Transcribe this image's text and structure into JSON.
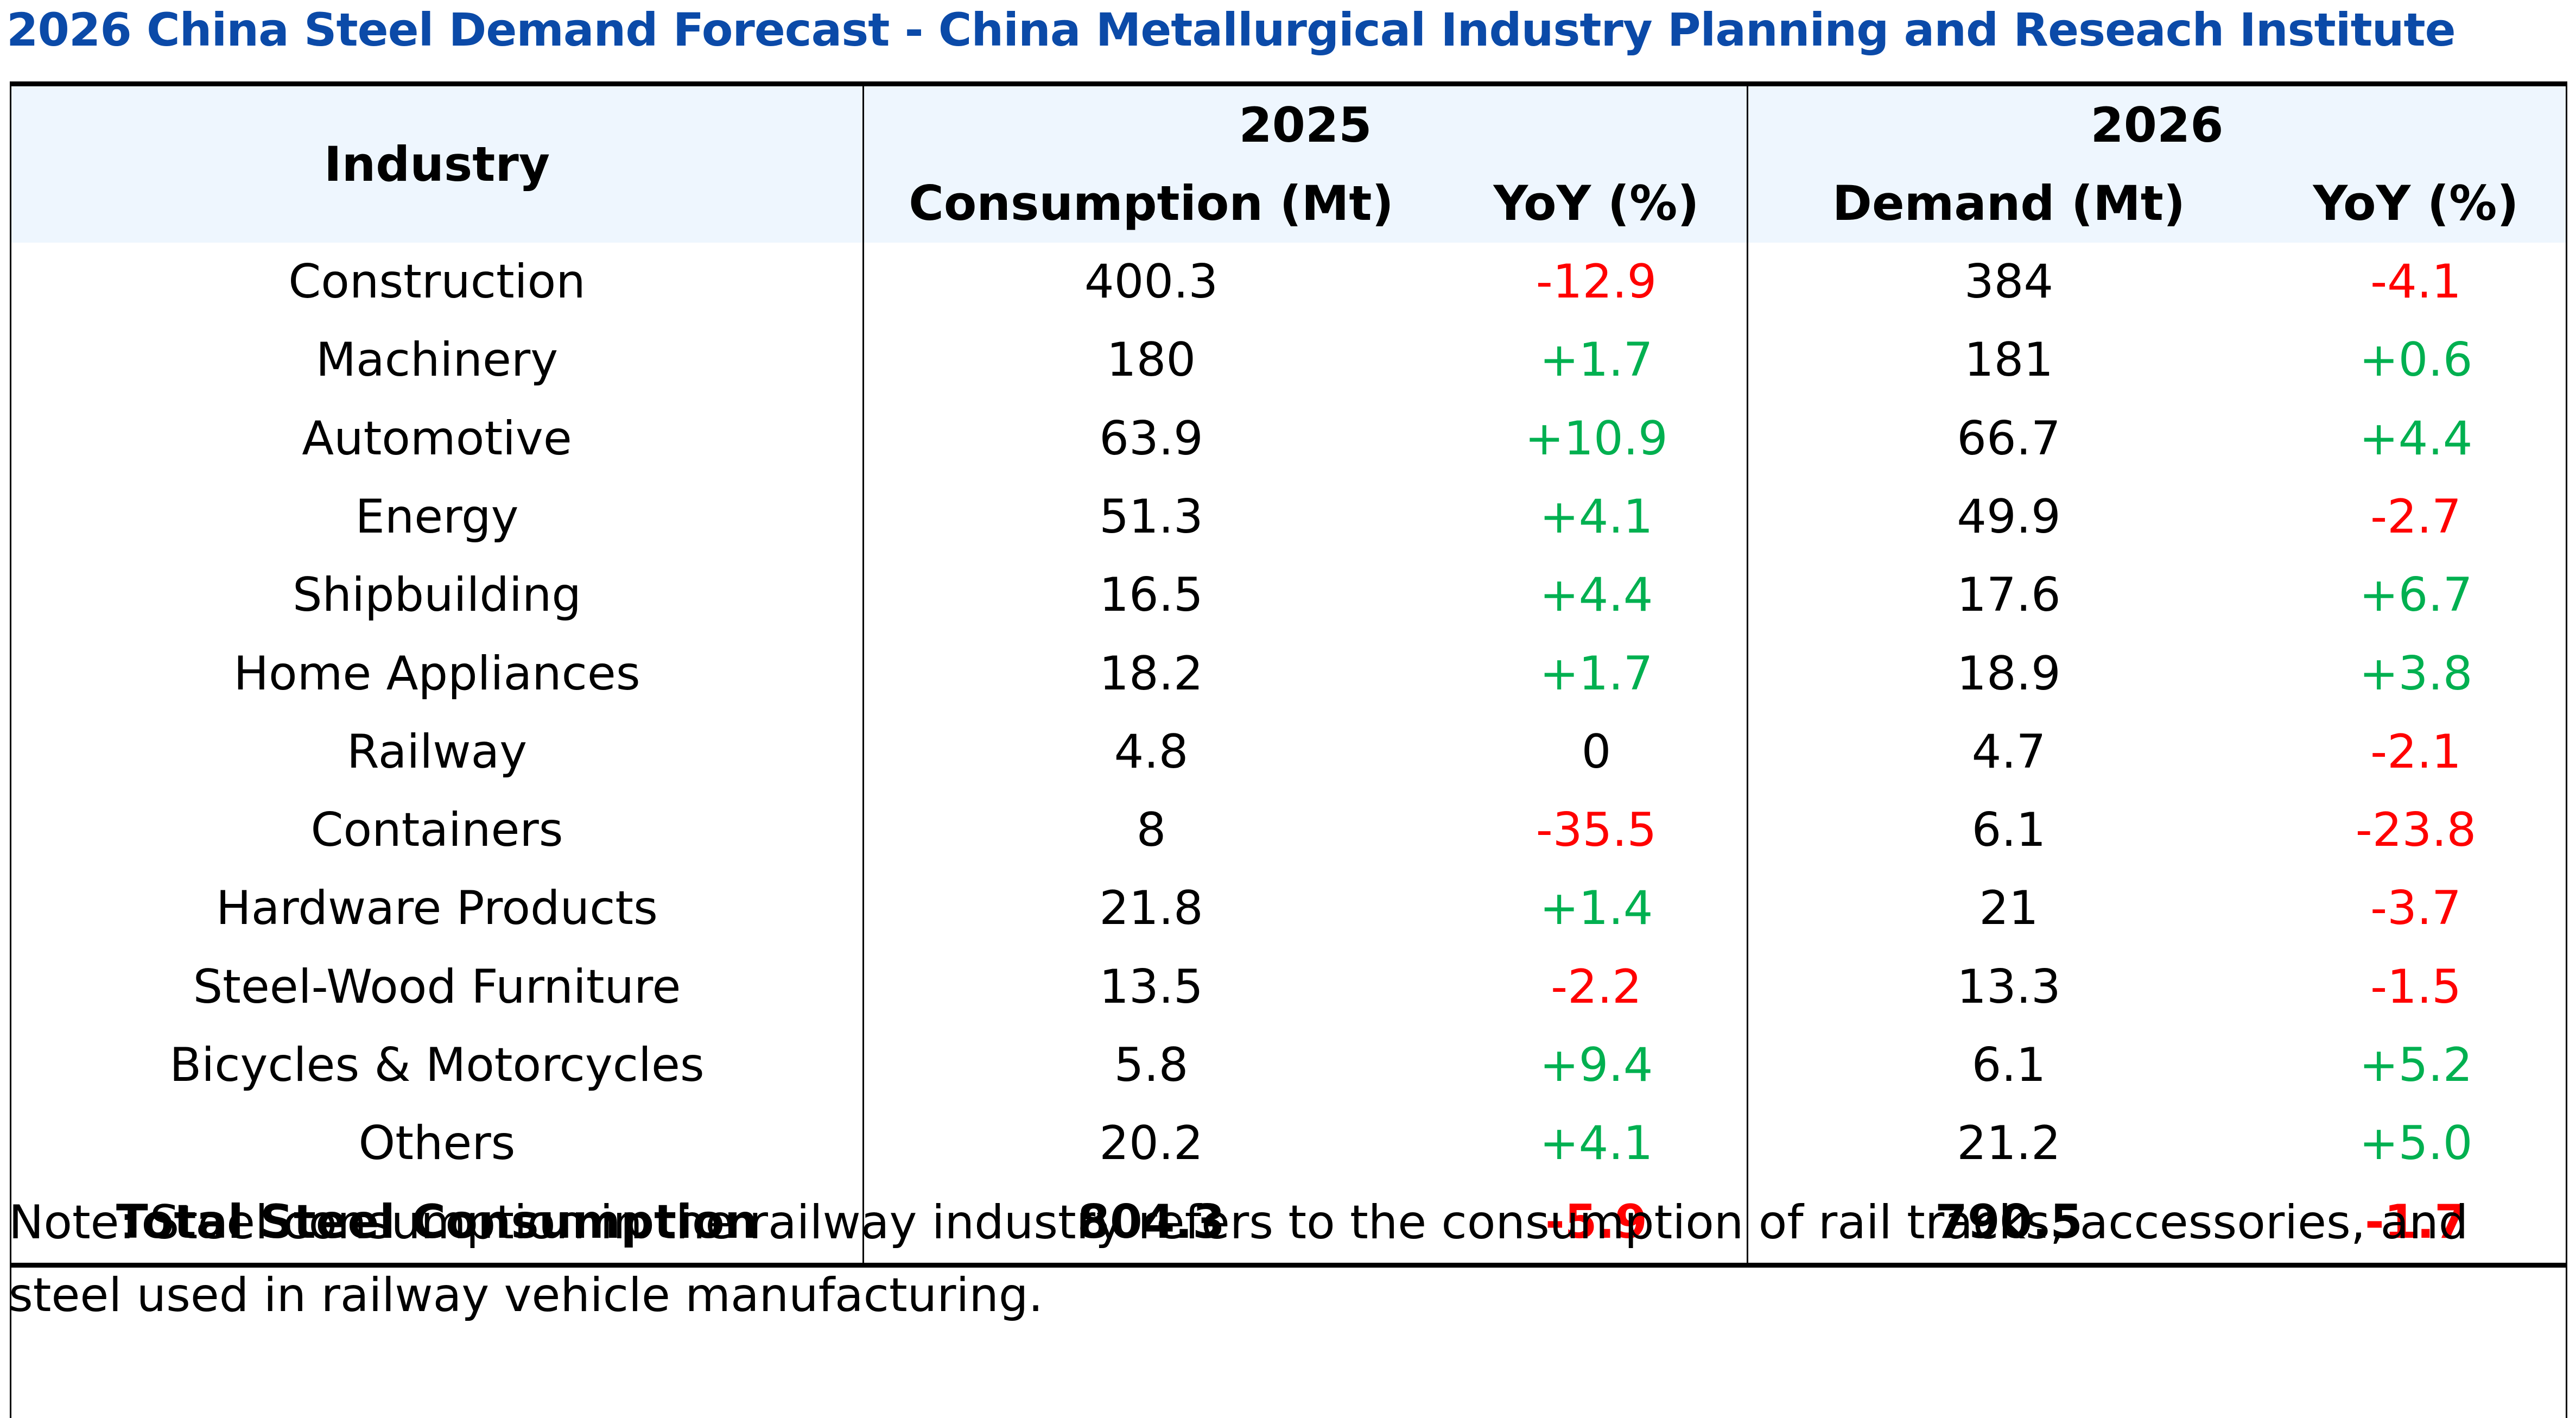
{
  "title": "2026 China Steel Demand Forecast - China Metallurgical Industry Planning and Reseach Institute",
  "colors": {
    "title": "#0b4aa8",
    "header_bg": "#eef6fe",
    "negative": "#ff0000",
    "positive": "#00b050"
  },
  "header": {
    "industry": "Industry",
    "year_2025": "2025",
    "year_2026": "2026",
    "consumption": "Consumption (Mt)",
    "yoy_2025": "YoY (%)",
    "demand": "Demand (Mt)",
    "yoy_2026": "YoY (%)"
  },
  "rows": [
    {
      "industry": "Construction",
      "c2025": "400.3",
      "y2025": "-12.9",
      "d2026": "384",
      "y2026": "-4.1"
    },
    {
      "industry": "Machinery",
      "c2025": "180",
      "y2025": "+1.7",
      "d2026": "181",
      "y2026": "+0.6"
    },
    {
      "industry": "Automotive",
      "c2025": "63.9",
      "y2025": "+10.9",
      "d2026": "66.7",
      "y2026": "+4.4"
    },
    {
      "industry": "Energy",
      "c2025": "51.3",
      "y2025": "+4.1",
      "d2026": "49.9",
      "y2026": "-2.7"
    },
    {
      "industry": "Shipbuilding",
      "c2025": "16.5",
      "y2025": "+4.4",
      "d2026": "17.6",
      "y2026": "+6.7"
    },
    {
      "industry": "Home Appliances",
      "c2025": "18.2",
      "y2025": "+1.7",
      "d2026": "18.9",
      "y2026": "+3.8"
    },
    {
      "industry": "Railway",
      "c2025": "4.8",
      "y2025": "0",
      "d2026": "4.7",
      "y2026": "-2.1"
    },
    {
      "industry": "Containers",
      "c2025": "8",
      "y2025": "-35.5",
      "d2026": "6.1",
      "y2026": "-23.8"
    },
    {
      "industry": "Hardware Products",
      "c2025": "21.8",
      "y2025": "+1.4",
      "d2026": "21",
      "y2026": "-3.7"
    },
    {
      "industry": "Steel-Wood Furniture",
      "c2025": "13.5",
      "y2025": "-2.2",
      "d2026": "13.3",
      "y2026": "-1.5"
    },
    {
      "industry": "Bicycles & Motorcycles",
      "c2025": "5.8",
      "y2025": "+9.4",
      "d2026": "6.1",
      "y2026": "+5.2"
    },
    {
      "industry": "Others",
      "c2025": "20.2",
      "y2025": "+4.1",
      "d2026": "21.2",
      "y2026": "+5.0"
    }
  ],
  "total": {
    "industry": "Total Steel Consumption",
    "c2025": "804.3",
    "y2025": "-5.9",
    "d2026": "790.5",
    "y2026": "-1.7"
  },
  "note": "Note: Steel consumption in the railway industry refers to the consumption of rail tracks, accessories, and steel used in railway vehicle manufacturing."
}
